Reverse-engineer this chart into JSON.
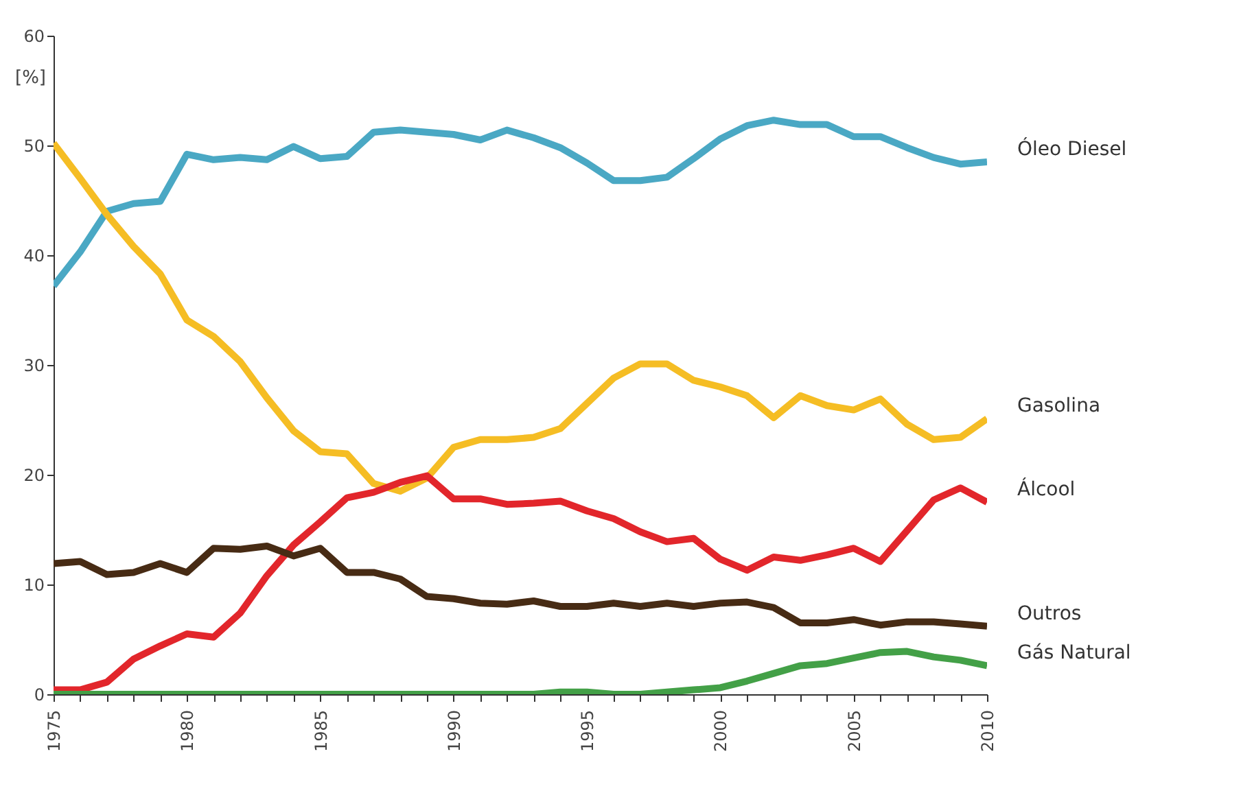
{
  "chart_data": {
    "type": "line",
    "ylabel": "[%]",
    "x": [
      1975,
      1976,
      1977,
      1978,
      1979,
      1980,
      1981,
      1982,
      1983,
      1984,
      1985,
      1986,
      1987,
      1988,
      1989,
      1990,
      1991,
      1992,
      1993,
      1994,
      1995,
      1996,
      1997,
      1998,
      1999,
      2000,
      2001,
      2002,
      2003,
      2004,
      2005,
      2006,
      2007,
      2008,
      2009,
      2010
    ],
    "series": [
      {
        "name": "Óleo Diesel",
        "color": "#4aa8c4",
        "values": [
          37.2,
          40.3,
          44,
          44.7,
          44.9,
          49.2,
          48.7,
          48.9,
          48.7,
          49.9,
          48.8,
          49,
          51.2,
          51.4,
          51.2,
          51,
          50.5,
          51.4,
          50.7,
          49.8,
          48.4,
          46.8,
          46.8,
          47.1,
          48.8,
          50.6,
          51.8,
          52.3,
          51.9,
          51.9,
          50.8,
          50.8,
          49.8,
          48.9,
          48.3,
          48.5
        ]
      },
      {
        "name": "Gasolina",
        "color": "#f5bd24",
        "values": [
          50.2,
          47,
          43.7,
          40.8,
          38.3,
          34.1,
          32.6,
          30.3,
          27,
          24,
          22.1,
          21.9,
          19.2,
          18.5,
          19.7,
          22.5,
          23.2,
          23.2,
          23.4,
          24.2,
          26.5,
          28.8,
          30.1,
          30.1,
          28.6,
          28,
          27.2,
          25.2,
          27.2,
          26.3,
          25.9,
          26.9,
          24.6,
          23.2,
          23.4,
          25.1
        ]
      },
      {
        "name": "Álcool",
        "color": "#e2262b",
        "values": [
          0.4,
          0.4,
          1.1,
          3.2,
          4.4,
          5.5,
          5.2,
          7.4,
          10.8,
          13.6,
          15.7,
          17.9,
          18.4,
          19.3,
          19.9,
          17.8,
          17.8,
          17.3,
          17.4,
          17.6,
          16.7,
          16,
          14.8,
          13.9,
          14.2,
          12.3,
          11.3,
          12.5,
          12.2,
          12.7,
          13.3,
          12.1,
          14.9,
          17.7,
          18.8,
          17.5
        ]
      },
      {
        "name": "Outros",
        "color": "#472b14",
        "values": [
          11.9,
          12.1,
          10.9,
          11.1,
          11.9,
          11.1,
          13.3,
          13.2,
          13.5,
          12.6,
          13.3,
          11.1,
          11.1,
          10.5,
          8.9,
          8.7,
          8.3,
          8.2,
          8.5,
          8,
          8,
          8.3,
          8,
          8.3,
          8,
          8.3,
          8.4,
          7.9,
          6.5,
          6.5,
          6.8,
          6.3,
          6.6,
          6.6,
          6.4,
          6.2
        ]
      },
      {
        "name": "Gás Natural",
        "color": "#43a047",
        "values": [
          0,
          0,
          0,
          0,
          0,
          0,
          0,
          0,
          0,
          0,
          0,
          0,
          0,
          0,
          0,
          0,
          0,
          0,
          0,
          0.2,
          0.2,
          0,
          0,
          0.2,
          0.4,
          0.6,
          1.2,
          1.9,
          2.6,
          2.8,
          3.3,
          3.8,
          3.9,
          3.4,
          3.1,
          2.6
        ]
      }
    ],
    "xlim": [
      1975,
      2010
    ],
    "xticks": [
      1975,
      {
        "value": 1976,
        "label": null
      },
      {
        "value": 1977,
        "label": null
      },
      {
        "value": 1978,
        "label": null
      },
      {
        "value": 1979,
        "label": null
      },
      1980,
      {
        "value": 1981,
        "label": null
      },
      {
        "value": 1982,
        "label": null
      },
      {
        "value": 1983,
        "label": null
      },
      {
        "value": 1984,
        "label": null
      },
      1985,
      {
        "value": 1986,
        "label": null
      },
      {
        "value": 1987,
        "label": null
      },
      {
        "value": 1988,
        "label": null
      },
      {
        "value": 1989,
        "label": null
      },
      1990,
      {
        "value": 1991,
        "label": null
      },
      {
        "value": 1992,
        "label": null
      },
      {
        "value": 1993,
        "label": null
      },
      {
        "value": 1994,
        "label": null
      },
      1995,
      {
        "value": 1996,
        "label": null
      },
      {
        "value": 1997,
        "label": null
      },
      {
        "value": 1998,
        "label": null
      },
      {
        "value": 1999,
        "label": null
      },
      2000,
      {
        "value": 2001,
        "label": null
      },
      {
        "value": 2002,
        "label": null
      },
      {
        "value": 2003,
        "label": null
      },
      {
        "value": 2004,
        "label": null
      },
      2005,
      {
        "value": 2006,
        "label": null
      },
      {
        "value": 2007,
        "label": null
      },
      {
        "value": 2008,
        "label": null
      },
      {
        "value": 2009,
        "label": null
      },
      2010
    ],
    "ylim": [
      0,
      60
    ],
    "yticks": [
      0,
      10,
      20,
      30,
      40,
      50,
      60
    ],
    "grid": false,
    "legend": "right",
    "marker": "none",
    "line_style": "solid"
  }
}
